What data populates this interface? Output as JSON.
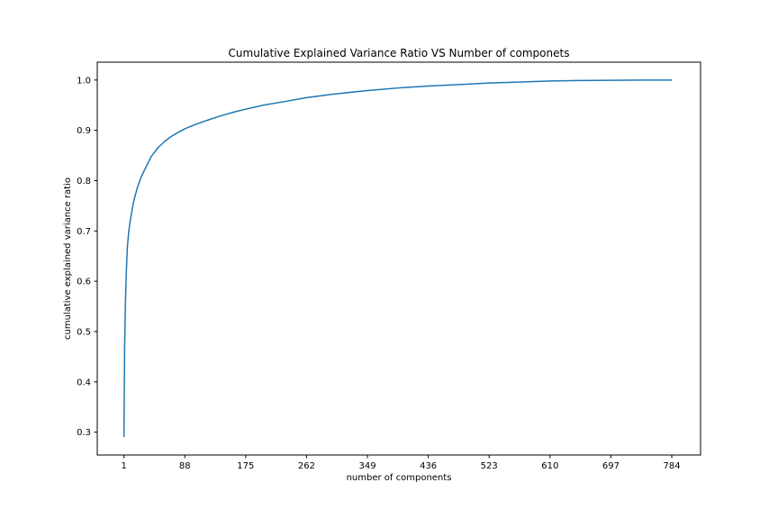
{
  "chart_data": {
    "type": "line",
    "title": "Cumulative Explained Variance Ratio VS Number of componets",
    "xlabel": "number of components",
    "ylabel": "cumulative explained variance ratio",
    "xlim": [
      -37.15,
      825.15
    ],
    "ylim": [
      0.2545,
      1.0355
    ],
    "x_ticks": [
      1,
      88,
      175,
      262,
      349,
      436,
      523,
      610,
      697,
      784
    ],
    "x_tick_labels": [
      "1",
      "88",
      "175",
      "262",
      "349",
      "436",
      "523",
      "610",
      "697",
      "784"
    ],
    "y_ticks": [
      0.3,
      0.4,
      0.5,
      0.6,
      0.7,
      0.8,
      0.9,
      1.0
    ],
    "y_tick_labels": [
      "0.3",
      "0.4",
      "0.5",
      "0.6",
      "0.7",
      "0.8",
      "0.9",
      "1.0"
    ],
    "grid": false,
    "line_color": "#1f77b4",
    "series": [
      {
        "x": [
          1,
          2,
          3,
          4,
          5,
          6,
          8,
          10,
          13,
          16,
          20,
          25,
          30,
          40,
          50,
          60,
          70,
          80,
          88,
          100,
          120,
          140,
          160,
          175,
          200,
          230,
          262,
          300,
          349,
          400,
          436,
          480,
          523,
          570,
          610,
          650,
          697,
          740,
          784
        ],
        "values": [
          0.29,
          0.47,
          0.55,
          0.6,
          0.64,
          0.67,
          0.7,
          0.72,
          0.745,
          0.765,
          0.785,
          0.805,
          0.82,
          0.848,
          0.866,
          0.879,
          0.889,
          0.897,
          0.903,
          0.91,
          0.92,
          0.929,
          0.937,
          0.942,
          0.95,
          0.957,
          0.965,
          0.972,
          0.979,
          0.985,
          0.988,
          0.991,
          0.994,
          0.996,
          0.998,
          0.999,
          0.9995,
          0.9999,
          1.0
        ]
      }
    ]
  }
}
